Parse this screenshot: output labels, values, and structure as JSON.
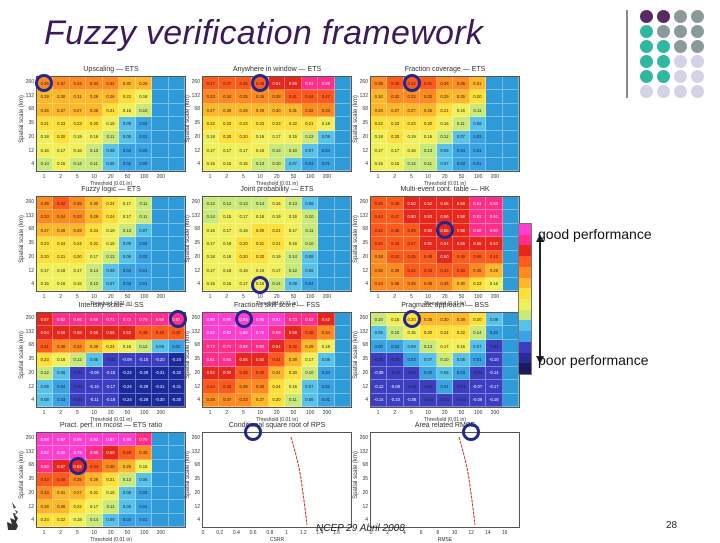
{
  "title": "Fuzzy verification framework",
  "good_label": "good performance",
  "poor_label": "poor performance",
  "footer": "NCEP 29 Abril 2008",
  "page_number": "28",
  "axes": {
    "y_label": "Spatial scale (km)",
    "y_ticks": [
      "260",
      "132",
      "68",
      "35",
      "20",
      "12",
      "4"
    ],
    "x_ticks": [
      "1",
      "2",
      "5",
      "10",
      "20",
      "50",
      "100",
      "200"
    ],
    "x_label": "Threshold (0.01 in)"
  },
  "panels": [
    {
      "title": "Upscaling — ETS",
      "ring": [
        0,
        0
      ],
      "rows": [
        [
          0.36,
          0.37,
          0.34,
          0.34,
          0.32,
          0.3,
          0.29,
          null,
          null
        ],
        [
          0.29,
          0.3,
          0.31,
          0.29,
          0.26,
          0.22,
          0.18,
          null,
          null
        ],
        [
          0.25,
          0.27,
          0.27,
          0.25,
          0.21,
          0.15,
          0.1,
          null,
          null
        ],
        [
          0.21,
          0.23,
          0.23,
          0.2,
          0.15,
          0.09,
          0.04,
          null,
          null
        ],
        [
          0.18,
          0.2,
          0.19,
          0.16,
          0.11,
          0.05,
          0.01,
          null,
          null
        ],
        [
          0.16,
          0.17,
          0.16,
          0.13,
          0.08,
          0.03,
          0.0,
          null,
          null
        ],
        [
          0.14,
          0.15,
          0.14,
          0.11,
          0.06,
          0.02,
          0.0,
          null,
          null
        ]
      ]
    },
    {
      "title": "Anywhere in window — ETS",
      "ring": [
        0,
        3
      ],
      "rows": [
        [
          0.47,
          0.47,
          0.46,
          0.48,
          0.51,
          0.56,
          0.61,
          0.66,
          null
        ],
        [
          0.33,
          0.34,
          0.35,
          0.36,
          0.38,
          0.41,
          0.44,
          0.47,
          null
        ],
        [
          0.27,
          0.28,
          0.28,
          0.29,
          0.3,
          0.31,
          0.32,
          0.33,
          null
        ],
        [
          0.22,
          0.23,
          0.23,
          0.23,
          0.23,
          0.22,
          0.21,
          0.19,
          null
        ],
        [
          0.19,
          0.2,
          0.2,
          0.19,
          0.17,
          0.15,
          0.12,
          0.09,
          null
        ],
        [
          0.17,
          0.17,
          0.17,
          0.16,
          0.13,
          0.1,
          0.07,
          0.04,
          null
        ],
        [
          0.15,
          0.15,
          0.15,
          0.13,
          0.1,
          0.07,
          0.03,
          0.01,
          null
        ]
      ]
    },
    {
      "title": "Fraction coverage — ETS",
      "ring": [
        0,
        2
      ],
      "rows": [
        [
          0.38,
          0.4,
          0.42,
          0.41,
          0.39,
          0.36,
          0.31,
          null,
          null
        ],
        [
          0.3,
          0.32,
          0.33,
          0.32,
          0.29,
          0.25,
          0.2,
          null,
          null
        ],
        [
          0.26,
          0.27,
          0.27,
          0.25,
          0.21,
          0.16,
          0.11,
          null,
          null
        ],
        [
          0.22,
          0.23,
          0.23,
          0.2,
          0.16,
          0.11,
          0.06,
          null,
          null
        ],
        [
          0.19,
          0.2,
          0.19,
          0.16,
          0.12,
          0.07,
          0.03,
          null,
          null
        ],
        [
          0.17,
          0.17,
          0.16,
          0.13,
          0.09,
          0.04,
          0.01,
          null,
          null
        ],
        [
          0.15,
          0.15,
          0.14,
          0.11,
          0.07,
          0.03,
          0.01,
          null,
          null
        ]
      ]
    },
    {
      "title": "Fuzzy logic — ETS",
      "ring": null,
      "rows": [
        [
          0.39,
          0.42,
          0.35,
          0.3,
          0.24,
          0.17,
          0.11,
          null,
          null
        ],
        [
          0.33,
          0.34,
          0.33,
          0.29,
          0.24,
          0.17,
          0.11,
          null,
          null
        ],
        [
          0.27,
          0.28,
          0.28,
          0.24,
          0.19,
          0.13,
          0.07,
          null,
          null
        ],
        [
          0.23,
          0.24,
          0.24,
          0.21,
          0.15,
          0.09,
          0.04,
          null,
          null
        ],
        [
          0.2,
          0.21,
          0.2,
          0.17,
          0.12,
          0.06,
          0.02,
          null,
          null
        ],
        [
          0.17,
          0.18,
          0.17,
          0.14,
          0.09,
          0.04,
          0.01,
          null,
          null
        ],
        [
          0.15,
          0.16,
          0.15,
          0.12,
          0.07,
          0.03,
          0.01,
          null,
          null
        ]
      ]
    },
    {
      "title": "Joint probability — ETS",
      "ring": [
        6,
        3
      ],
      "rows": [
        [
          0.12,
          0.12,
          0.13,
          0.14,
          0.15,
          0.13,
          0.08,
          null,
          null
        ],
        [
          0.14,
          0.15,
          0.17,
          0.18,
          0.19,
          0.16,
          0.1,
          null,
          null
        ],
        [
          0.16,
          0.17,
          0.19,
          0.2,
          0.21,
          0.17,
          0.11,
          null,
          null
        ],
        [
          0.17,
          0.19,
          0.2,
          0.21,
          0.21,
          0.16,
          0.1,
          null,
          null
        ],
        [
          0.18,
          0.19,
          0.2,
          0.2,
          0.19,
          0.14,
          0.08,
          null,
          null
        ],
        [
          0.17,
          0.18,
          0.19,
          0.19,
          0.17,
          0.12,
          0.06,
          null,
          null
        ],
        [
          0.15,
          0.16,
          0.17,
          0.16,
          0.14,
          0.09,
          0.04,
          null,
          null
        ]
      ]
    },
    {
      "title": "Multi-event cont. table — HK",
      "ring": [
        2,
        4
      ],
      "rows": [
        [
          0.46,
          0.48,
          0.5,
          0.52,
          0.55,
          0.58,
          0.61,
          0.63,
          null
        ],
        [
          0.44,
          0.47,
          0.5,
          0.53,
          0.56,
          0.59,
          0.61,
          0.62,
          null
        ],
        [
          0.42,
          0.45,
          0.49,
          0.53,
          0.56,
          0.59,
          0.6,
          0.6,
          null
        ],
        [
          0.4,
          0.43,
          0.47,
          0.51,
          0.54,
          0.55,
          0.55,
          0.53,
          null
        ],
        [
          0.38,
          0.41,
          0.45,
          0.48,
          0.5,
          0.49,
          0.46,
          0.42,
          null
        ],
        [
          0.36,
          0.39,
          0.42,
          0.44,
          0.43,
          0.4,
          0.35,
          0.29,
          null
        ],
        [
          0.34,
          0.36,
          0.38,
          0.38,
          0.35,
          0.3,
          0.23,
          0.16,
          null
        ]
      ]
    },
    {
      "title": "Intensity-scale — SS",
      "ring": [
        0,
        8
      ],
      "rows": [
        [
          0.57,
          0.62,
          0.66,
          0.69,
          0.71,
          0.72,
          0.7,
          0.68,
          0.67
        ],
        [
          0.54,
          0.56,
          0.58,
          0.58,
          0.56,
          0.53,
          0.49,
          0.45,
          0.42
        ],
        [
          0.41,
          0.38,
          0.34,
          0.29,
          0.24,
          0.18,
          0.12,
          0.06,
          0.02
        ],
        [
          0.23,
          0.18,
          0.12,
          0.05,
          -0.02,
          -0.09,
          -0.15,
          -0.2,
          -0.24
        ],
        [
          0.12,
          0.06,
          -0.01,
          -0.08,
          -0.15,
          -0.22,
          -0.28,
          -0.31,
          -0.32
        ],
        [
          0.09,
          0.04,
          -0.03,
          -0.1,
          -0.17,
          -0.24,
          -0.29,
          -0.31,
          -0.31
        ],
        [
          0.08,
          0.03,
          -0.04,
          -0.11,
          -0.18,
          -0.24,
          -0.28,
          -0.3,
          -0.3
        ]
      ]
    },
    {
      "title": "Fractions skill score — FSS",
      "ring": [
        0,
        2
      ],
      "rows": [
        [
          0.9,
          0.9,
          0.89,
          0.86,
          0.81,
          0.73,
          0.62,
          0.52,
          null
        ],
        [
          0.82,
          0.82,
          0.8,
          0.76,
          0.69,
          0.58,
          0.45,
          0.34,
          null
        ],
        [
          0.72,
          0.71,
          0.68,
          0.63,
          0.54,
          0.42,
          0.29,
          0.18,
          null
        ],
        [
          0.61,
          0.6,
          0.56,
          0.5,
          0.41,
          0.29,
          0.17,
          0.08,
          null
        ],
        [
          0.52,
          0.5,
          0.46,
          0.4,
          0.31,
          0.2,
          0.1,
          0.04,
          null
        ],
        [
          0.44,
          0.43,
          0.39,
          0.33,
          0.24,
          0.15,
          0.07,
          0.02,
          null
        ],
        [
          0.38,
          0.37,
          0.33,
          0.27,
          0.2,
          0.11,
          0.05,
          0.01,
          null
        ]
      ]
    },
    {
      "title": "Pragmatic approach — BSS",
      "ring": [
        0,
        2
      ],
      "rows": [
        [
          0.1,
          0.15,
          0.2,
          0.25,
          0.3,
          0.28,
          0.2,
          0.09,
          null
        ],
        [
          0.05,
          0.1,
          0.15,
          0.2,
          0.24,
          0.22,
          0.14,
          0.03,
          null
        ],
        [
          0.0,
          0.04,
          0.09,
          0.13,
          0.17,
          0.15,
          0.07,
          -0.04,
          null
        ],
        [
          -0.05,
          -0.01,
          0.03,
          0.07,
          0.1,
          0.08,
          0.01,
          -0.1,
          null
        ],
        [
          -0.09,
          -0.05,
          -0.01,
          0.02,
          0.05,
          0.03,
          -0.04,
          -0.14,
          null
        ],
        [
          -0.12,
          -0.08,
          -0.04,
          -0.01,
          0.01,
          -0.01,
          -0.07,
          -0.17,
          null
        ],
        [
          -0.14,
          -0.1,
          -0.06,
          -0.03,
          -0.01,
          -0.03,
          -0.09,
          -0.18,
          null
        ]
      ]
    },
    {
      "title": "Pract. perf. in mcost — ETS ratio",
      "ring": [
        2,
        2
      ],
      "rows": [
        [
          0.98,
          0.97,
          0.95,
          0.92,
          0.87,
          0.8,
          0.7,
          null,
          null
        ],
        [
          0.82,
          0.8,
          0.75,
          0.68,
          0.59,
          0.48,
          0.35,
          null,
          null
        ],
        [
          0.6,
          0.57,
          0.52,
          0.44,
          0.35,
          0.25,
          0.15,
          null,
          null
        ],
        [
          0.43,
          0.4,
          0.35,
          0.29,
          0.21,
          0.13,
          0.06,
          null,
          null
        ],
        [
          0.33,
          0.31,
          0.27,
          0.21,
          0.15,
          0.08,
          0.03,
          null,
          null
        ],
        [
          0.28,
          0.26,
          0.22,
          0.17,
          0.11,
          0.05,
          0.01,
          null,
          null
        ],
        [
          0.24,
          0.22,
          0.18,
          0.14,
          0.09,
          0.04,
          0.01,
          null,
          null
        ]
      ]
    }
  ],
  "curve_panels": [
    {
      "title": "Conditional square root of RPS",
      "x_label": "CSRR",
      "x_ticks": [
        "0",
        "0.2",
        "0.4",
        "0.6",
        "0.8",
        "1",
        "1.2",
        "1.4",
        "1.6"
      ],
      "ring_x": "0.6"
    },
    {
      "title": "Area related RMSE",
      "x_label": "RMSE",
      "x_ticks": [
        "0",
        "2",
        "4",
        "6",
        "8",
        "10",
        "12",
        "14",
        "16"
      ],
      "ring_x": "12"
    }
  ]
}
